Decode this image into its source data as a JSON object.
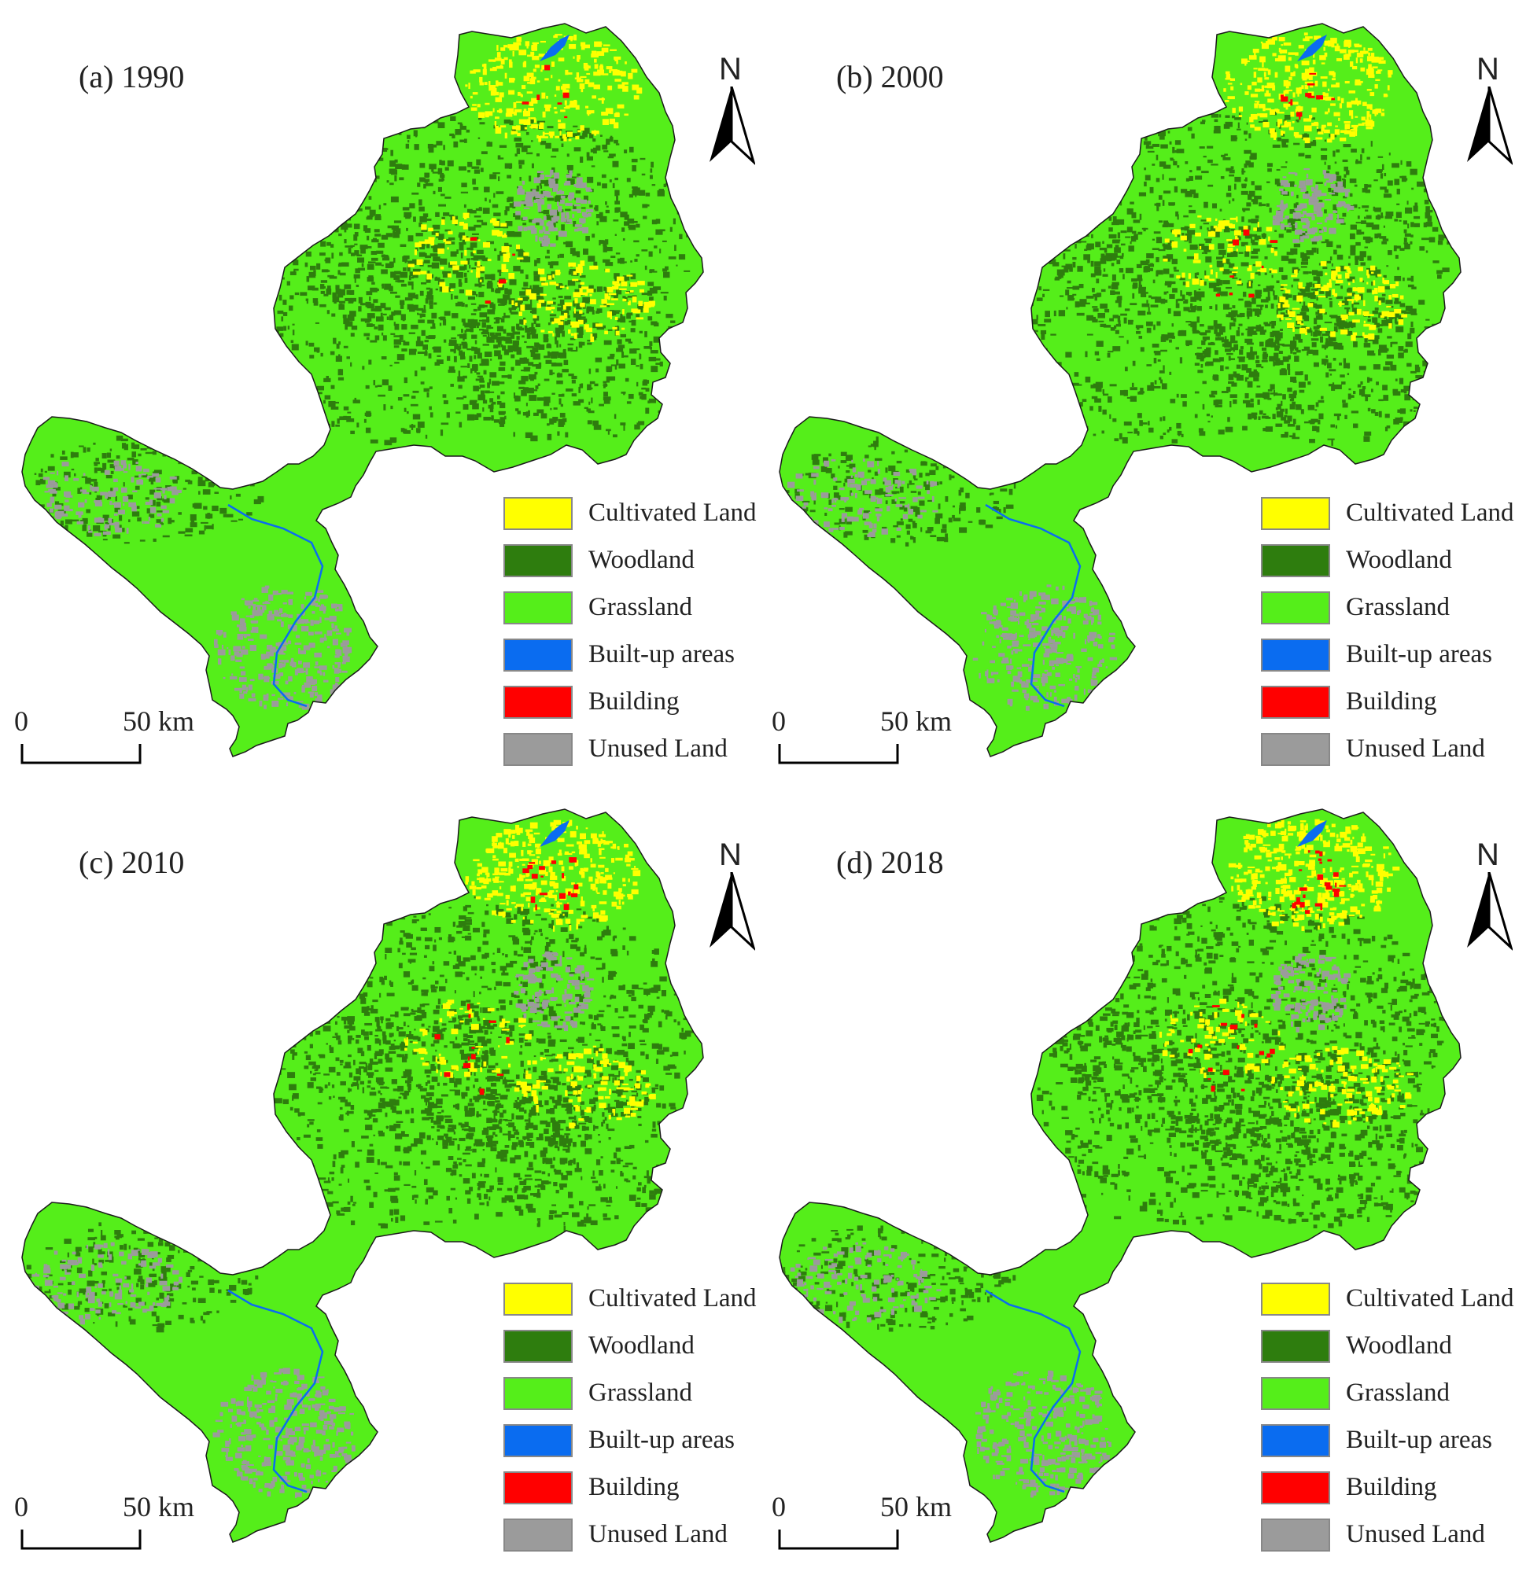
{
  "colors": {
    "cultivated_land": "#ffff00",
    "woodland": "#2e7d0e",
    "grassland": "#55ee1a",
    "built_up_areas": "#0a6cf0",
    "building": "#ff0000",
    "unused_land": "#9b9b9b"
  },
  "legend": [
    {
      "label": "Cultivated Land",
      "color_key": "cultivated_land"
    },
    {
      "label": "Woodland",
      "color_key": "woodland"
    },
    {
      "label": "Grassland",
      "color_key": "grassland"
    },
    {
      "label": "Built-up areas",
      "color_key": "built_up_areas"
    },
    {
      "label": "Building",
      "color_key": "building"
    },
    {
      "label": "Unused Land",
      "color_key": "unused_land"
    }
  ],
  "panels": [
    {
      "title": "(a) 1990"
    },
    {
      "title": "(b) 2000"
    },
    {
      "title": "(c) 2010"
    },
    {
      "title": "(d) 2018"
    }
  ],
  "north_label": "N",
  "scale": {
    "zero": "0",
    "fifty": "50  km"
  },
  "icons": {
    "north_arrow": "north-arrow-icon"
  }
}
